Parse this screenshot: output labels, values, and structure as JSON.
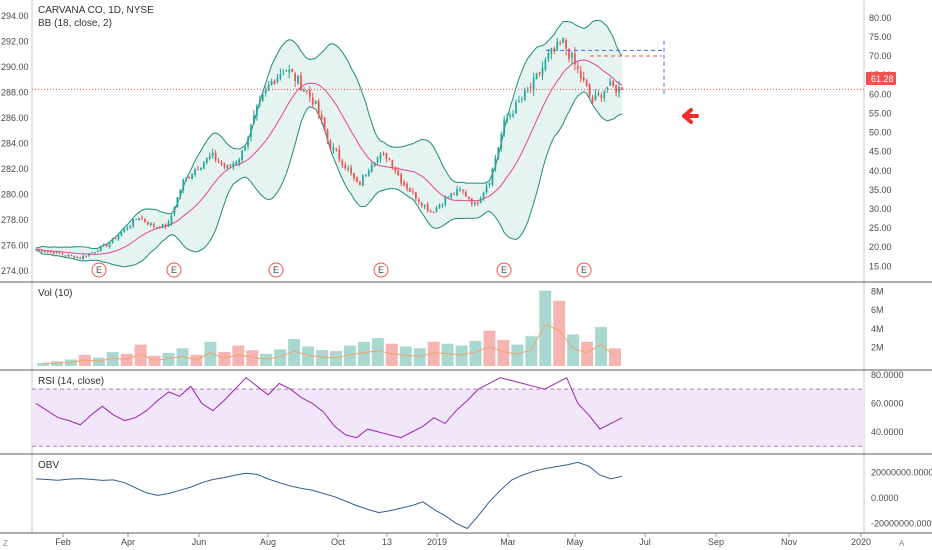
{
  "header": {
    "symbol_line": "CARVANA CO, 1D, NYSE",
    "bb_line": "BB (18, close, 2)"
  },
  "price_badge": "61.28",
  "earnings_marker": "E",
  "corner_left": "Z",
  "corner_right": "A",
  "colors": {
    "up": "#26a69a",
    "down": "#ef5350",
    "bb_band": "#1e8a7a",
    "bb_fill": "#e6f4f1",
    "bb_mid": "#e84393",
    "vol_ma": "#f2a36b",
    "rsi": "#9c27b0",
    "rsi_fill": "#f2e6fb",
    "obv": "#2f5f8f",
    "price_line": "#ef5350",
    "target_line": "#4a6fd1",
    "arrow": "#ef2d2d"
  },
  "panes": {
    "vol": {
      "label": "Vol (10)"
    },
    "rsi": {
      "label": "RSI (14, close)"
    },
    "obv": {
      "label": "OBV"
    }
  },
  "chart_data": [
    {
      "type": "candlestick",
      "title": "CARVANA CO, 1D, NYSE",
      "indicator": "BB (18, close, 2)",
      "right_axis": {
        "ticks": [
          "80.00",
          "75.00",
          "70.00",
          "65.00",
          "60.00",
          "55.00",
          "50.00",
          "45.00",
          "40.00",
          "35.00",
          "30.00",
          "25.00",
          "20.00",
          "15.00"
        ],
        "range": [
          13,
          81
        ]
      },
      "left_axis": {
        "ticks": [
          "294.00",
          "292.00",
          "290.00",
          "288.00",
          "286.00",
          "284.00",
          "282.00",
          "280.00",
          "278.00",
          "276.00",
          "274.00"
        ]
      },
      "x_ticks": [
        "Feb",
        "Apr",
        "Jun",
        "Aug",
        "Oct",
        "13",
        "2019",
        "Mar",
        "May",
        "Jul",
        "Sep",
        "Nov",
        "2020"
      ],
      "last_price": 61.28,
      "earnings_markers": 6,
      "close_path": [
        {
          "date": "2018-01-02",
          "close": 19.5
        },
        {
          "date": "2018-01-20",
          "close": 18.8
        },
        {
          "date": "2018-02-10",
          "close": 18.0
        },
        {
          "date": "2018-03-01",
          "close": 17.2
        },
        {
          "date": "2018-03-15",
          "close": 19.0
        },
        {
          "date": "2018-04-01",
          "close": 21.0
        },
        {
          "date": "2018-04-15",
          "close": 24.5
        },
        {
          "date": "2018-04-25",
          "close": 28.0
        },
        {
          "date": "2018-05-10",
          "close": 25.5
        },
        {
          "date": "2018-05-25",
          "close": 25.5
        },
        {
          "date": "2018-06-10",
          "close": 37.0
        },
        {
          "date": "2018-06-25",
          "close": 41.0
        },
        {
          "date": "2018-07-10",
          "close": 44.0
        },
        {
          "date": "2018-07-20",
          "close": 40.5
        },
        {
          "date": "2018-08-01",
          "close": 44.0
        },
        {
          "date": "2018-08-10",
          "close": 55.0
        },
        {
          "date": "2018-08-20",
          "close": 63.0
        },
        {
          "date": "2018-09-01",
          "close": 67.0
        },
        {
          "date": "2018-09-10",
          "close": 63.0
        },
        {
          "date": "2018-09-25",
          "close": 58.0
        },
        {
          "date": "2018-10-05",
          "close": 47.0
        },
        {
          "date": "2018-10-15",
          "close": 42.0
        },
        {
          "date": "2018-10-25",
          "close": 36.0
        },
        {
          "date": "2018-11-05",
          "close": 43.0
        },
        {
          "date": "2018-11-15",
          "close": 44.0
        },
        {
          "date": "2018-11-30",
          "close": 37.0
        },
        {
          "date": "2018-12-10",
          "close": 33.0
        },
        {
          "date": "2018-12-24",
          "close": 29.0
        },
        {
          "date": "2019-01-10",
          "close": 33.0
        },
        {
          "date": "2019-01-25",
          "close": 35.0
        },
        {
          "date": "2019-02-10",
          "close": 31.0
        },
        {
          "date": "2019-02-25",
          "close": 38.0
        },
        {
          "date": "2019-03-10",
          "close": 53.0
        },
        {
          "date": "2019-03-25",
          "close": 58.0
        },
        {
          "date": "2019-04-10",
          "close": 63.0
        },
        {
          "date": "2019-04-25",
          "close": 70.0
        },
        {
          "date": "2019-05-01",
          "close": 73.5
        },
        {
          "date": "2019-05-10",
          "close": 66.0
        },
        {
          "date": "2019-05-20",
          "close": 58.0
        },
        {
          "date": "2019-05-28",
          "close": 62.0
        },
        {
          "date": "2019-06-05",
          "close": 61.28
        }
      ]
    },
    {
      "type": "bar",
      "title": "Vol (10)",
      "right_axis": {
        "ticks": [
          "8M",
          "6M",
          "4M",
          "2M"
        ],
        "range": [
          0,
          8.6
        ]
      },
      "values_millions": [
        0.3,
        0.5,
        0.7,
        1.2,
        0.9,
        1.5,
        1.3,
        2.3,
        1.1,
        1.4,
        1.9,
        1.2,
        2.6,
        1.5,
        2.2,
        1.7,
        1.3,
        1.8,
        2.9,
        2.1,
        1.7,
        1.6,
        2.2,
        2.6,
        3.0,
        2.4,
        2.1,
        1.9,
        2.6,
        2.4,
        2.2,
        2.7,
        3.8,
        2.8,
        2.3,
        3.2,
        8.1,
        7.0,
        3.4,
        2.6,
        4.2,
        1.9
      ]
    },
    {
      "type": "line",
      "title": "RSI (14, close)",
      "right_axis": {
        "ticks": [
          "80.0000",
          "60.0000",
          "40.0000"
        ],
        "range": [
          26,
          82
        ]
      },
      "bands": [
        70,
        30
      ],
      "values": [
        60,
        55,
        50,
        48,
        45,
        52,
        58,
        52,
        48,
        50,
        55,
        62,
        68,
        65,
        72,
        60,
        55,
        62,
        70,
        78,
        72,
        66,
        74,
        70,
        64,
        60,
        54,
        44,
        38,
        36,
        42,
        40,
        38,
        36,
        40,
        44,
        50,
        46,
        55,
        62,
        70,
        74,
        78,
        76,
        74,
        72,
        70,
        74,
        78,
        60,
        52,
        42,
        46,
        50
      ]
    },
    {
      "type": "line",
      "title": "OBV",
      "right_axis": {
        "ticks": [
          "20000000.0000",
          "0.0000",
          "-20000000.0000"
        ],
        "range": [
          -26000000,
          33000000
        ]
      },
      "values": [
        15000000,
        14500000,
        14000000,
        14800000,
        15200000,
        14600000,
        13800000,
        14200000,
        12000000,
        8000000,
        4000000,
        2000000,
        3500000,
        6000000,
        8500000,
        12000000,
        14500000,
        16000000,
        18000000,
        19500000,
        18500000,
        15000000,
        12000000,
        9500000,
        7500000,
        6000000,
        3500000,
        1000000,
        -2500000,
        -6000000,
        -9000000,
        -11500000,
        -10000000,
        -8000000,
        -6000000,
        -3000000,
        -9000000,
        -14000000,
        -20000000,
        -24000000,
        -14000000,
        -3000000,
        6000000,
        14000000,
        18000000,
        21000000,
        23000000,
        24500000,
        26000000,
        28000000,
        25000000,
        18000000,
        15000000,
        17000000
      ]
    }
  ]
}
